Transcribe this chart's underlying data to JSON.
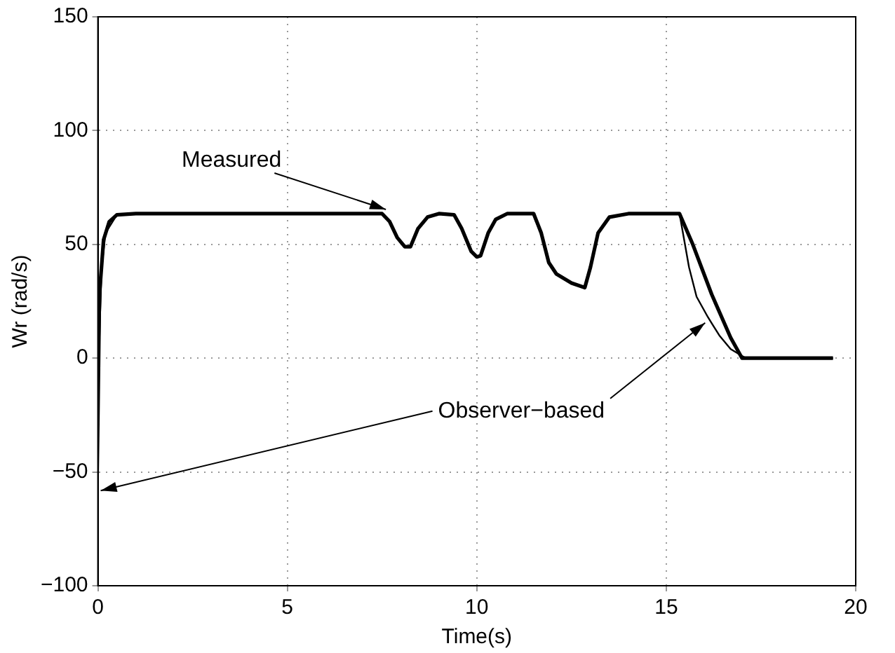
{
  "chart_data": {
    "type": "line",
    "xlabel": "Time(s)",
    "ylabel": "Wr (rad/s)",
    "xlim": [
      0,
      20
    ],
    "xticks": [
      0,
      5,
      10,
      15,
      20
    ],
    "ylim": [
      -100,
      150
    ],
    "yticks": [
      {
        "value": -100,
        "label": "−100"
      },
      {
        "value": -50,
        "label": "−50"
      },
      0,
      50,
      100,
      150
    ],
    "grid": true,
    "legend": false,
    "marker": "none",
    "line_style": "solid",
    "series": [
      {
        "color": "#000000",
        "x": [
          0,
          0.05,
          0.15,
          0.3,
          0.5,
          1,
          7.5,
          7.7,
          7.9,
          8.1,
          8.25,
          8.45,
          8.7,
          9,
          9.4,
          9.6,
          9.85,
          10,
          10.1,
          10.3,
          10.5,
          10.8,
          11.5,
          11.7,
          11.9,
          12.1,
          12.5,
          12.85,
          13,
          13.2,
          13.5,
          14,
          15.35,
          15.7,
          16.2,
          16.7,
          17,
          19.4
        ],
        "values": [
          0,
          30,
          52,
          60,
          63,
          63.5,
          63.5,
          60,
          53,
          49,
          49,
          57,
          62,
          63.5,
          63,
          57,
          47,
          44.5,
          45,
          55,
          61,
          63.5,
          63.5,
          55,
          42,
          37,
          33,
          31,
          40,
          55,
          62,
          63.5,
          63.5,
          50,
          28,
          9,
          0,
          0
        ]
      },
      {
        "color": "#000000",
        "x": [
          0,
          0.03,
          0.06,
          0.1,
          0.2,
          0.5,
          1,
          7.5,
          7.7,
          7.9,
          8.1,
          8.25,
          8.45,
          8.7,
          9,
          9.4,
          9.6,
          9.85,
          10,
          10.1,
          10.3,
          10.5,
          10.8,
          11.5,
          11.7,
          11.9,
          12.1,
          12.5,
          12.85,
          13,
          13.2,
          13.5,
          14,
          15.35,
          15.6,
          15.8,
          16.1,
          16.4,
          16.7,
          17.1,
          19.4
        ],
        "values": [
          -57,
          -20,
          20,
          40,
          55,
          63,
          63.5,
          63.5,
          60,
          53,
          49,
          49,
          57,
          62,
          63.5,
          63,
          57,
          47,
          44.5,
          45,
          55,
          61,
          63.5,
          63.5,
          55,
          42,
          37,
          33,
          31,
          40,
          55,
          62,
          63.5,
          63.5,
          40,
          27,
          18,
          10,
          4,
          0,
          0
        ]
      }
    ],
    "annotations": [
      {
        "text": "Measured",
        "x": 7.6,
        "y": 63.5
      },
      {
        "text": "Observer−based",
        "x": 16.1,
        "y": 18
      }
    ]
  }
}
